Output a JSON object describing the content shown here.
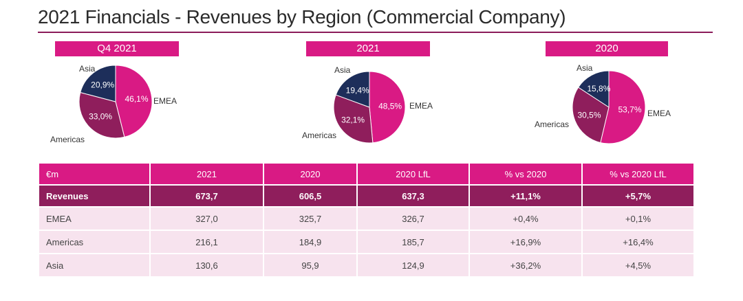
{
  "title": "2021 Financials - Revenues by Region (Commercial Company)",
  "colors": {
    "emea": "#d91a84",
    "americas": "#8f1e5c",
    "asia": "#1d2e5a",
    "accent": "#d91a84"
  },
  "chart_data": [
    {
      "type": "pie",
      "title": "Q4 2021",
      "slices": [
        {
          "label": "EMEA",
          "value": 46.1,
          "text": "46,1%"
        },
        {
          "label": "Americas",
          "value": 33.0,
          "text": "33,0%"
        },
        {
          "label": "Asia",
          "value": 20.9,
          "text": "20,9%"
        }
      ]
    },
    {
      "type": "pie",
      "title": "2021",
      "slices": [
        {
          "label": "EMEA",
          "value": 48.5,
          "text": "48,5%"
        },
        {
          "label": "Americas",
          "value": 32.1,
          "text": "32,1%"
        },
        {
          "label": "Asia",
          "value": 19.4,
          "text": "19,4%"
        }
      ]
    },
    {
      "type": "pie",
      "title": "2020",
      "slices": [
        {
          "label": "EMEA",
          "value": 53.7,
          "text": "53,7%"
        },
        {
          "label": "Americas",
          "value": 30.5,
          "text": "30,5%"
        },
        {
          "label": "Asia",
          "value": 15.8,
          "text": "15,8%"
        }
      ]
    }
  ],
  "table": {
    "headers": [
      "€m",
      "2021",
      "2020",
      "2020 LfL",
      "% vs 2020",
      "% vs 2020 LfL"
    ],
    "revenues": [
      "Revenues",
      "673,7",
      "606,5",
      "637,3",
      "+11,1%",
      "+5,7%"
    ],
    "rows": [
      [
        "EMEA",
        "327,0",
        "325,7",
        "326,7",
        "+0,4%",
        "+0,1%"
      ],
      [
        "Americas",
        "216,1",
        "184,9",
        "185,7",
        "+16,9%",
        "+16,4%"
      ],
      [
        "Asia",
        "130,6",
        "95,9",
        "124,9",
        "+36,2%",
        "+4,5%"
      ]
    ]
  }
}
